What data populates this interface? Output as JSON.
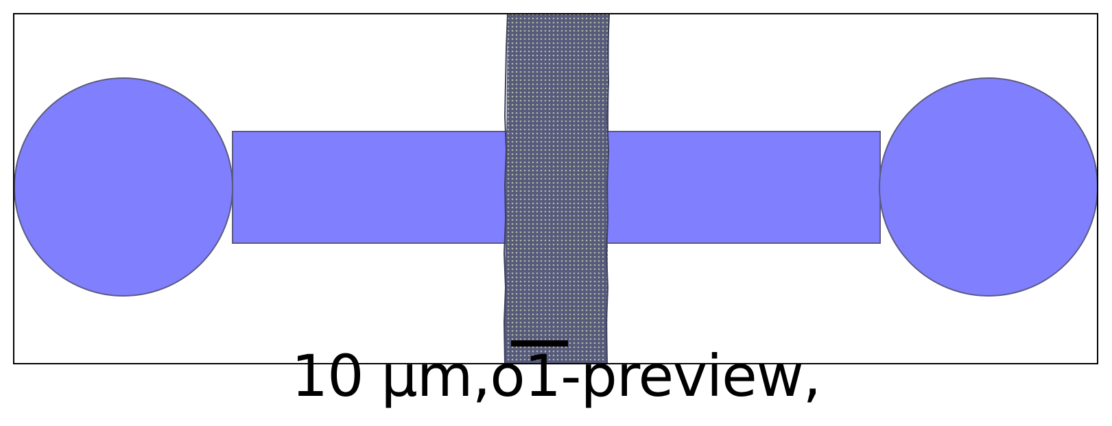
{
  "figure": {
    "caption": "10 µm,o1-preview,",
    "colors": {
      "pad_fill": "#8080ff",
      "pad_stroke": "#5a5a80",
      "strip_fill": "#565a7c",
      "strip_dots": "#b8b8a0",
      "frame": "#000000",
      "scale_bar": "#000000"
    },
    "elements": [
      "left-contact-pad",
      "left-lead",
      "right-lead",
      "right-contact-pad",
      "material-strip",
      "scale-bar"
    ]
  }
}
